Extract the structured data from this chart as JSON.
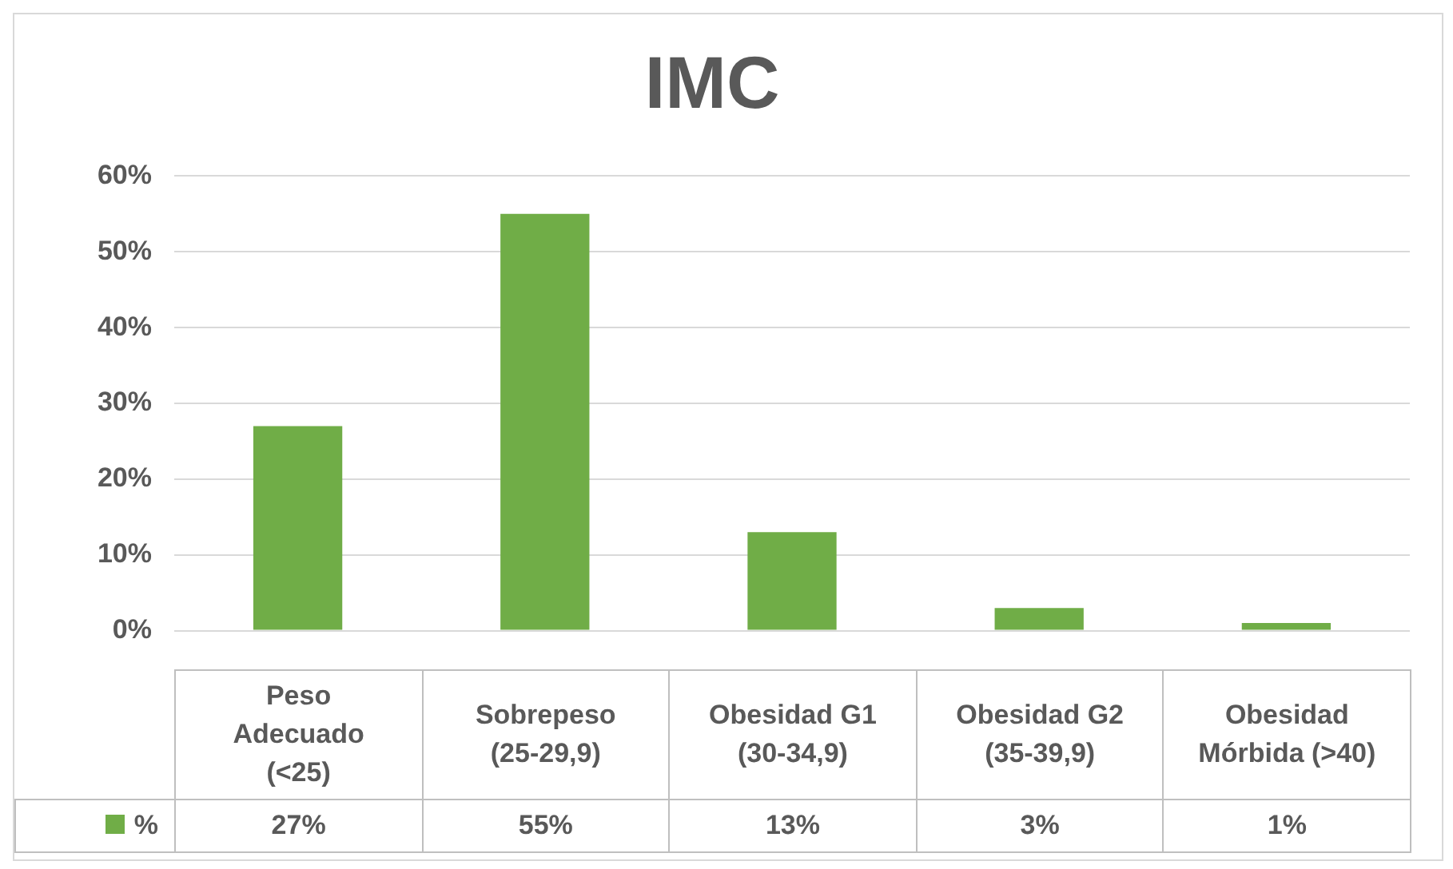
{
  "chart_data": {
    "type": "bar",
    "title": "IMC",
    "categories": [
      "Peso Adecuado (<25)",
      "Sobrepeso (25-29,9)",
      "Obesidad G1 (30-34,9)",
      "Obesidad G2 (35-39,9)",
      "Obesidad Mórbida (>40)"
    ],
    "series": [
      {
        "name": "%",
        "color": "#70ad47",
        "values": [
          27,
          55,
          13,
          3,
          1
        ],
        "value_labels": [
          "27%",
          "55%",
          "13%",
          "3%",
          "1%"
        ]
      }
    ],
    "ylim": [
      0,
      60
    ],
    "yticks": [
      {
        "value": 0,
        "label": "0%"
      },
      {
        "value": 10,
        "label": "10%"
      },
      {
        "value": 20,
        "label": "20%"
      },
      {
        "value": 30,
        "label": "30%"
      },
      {
        "value": 40,
        "label": "40%"
      },
      {
        "value": 50,
        "label": "50%"
      },
      {
        "value": 60,
        "label": "60%"
      }
    ],
    "grid": "y",
    "legend": "bottom"
  }
}
